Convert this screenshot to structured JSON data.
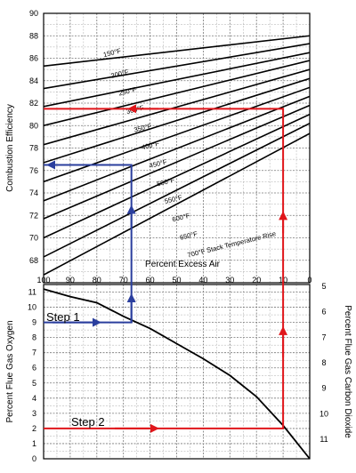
{
  "chart_data": [
    {
      "type": "line",
      "panel": "upper",
      "ylabel": "Combustion Efficiency",
      "xlabel": "Percent Excess Air",
      "series_label_suffix": "°F Stack Temperature Rise",
      "ylim": [
        66,
        90
      ],
      "xlim": [
        100,
        0
      ],
      "yticks": [
        68,
        70,
        72,
        74,
        76,
        78,
        80,
        82,
        84,
        86,
        88,
        90
      ],
      "xticks": [
        100,
        90,
        80,
        70,
        60,
        50,
        40,
        30,
        20,
        10,
        0
      ],
      "grid": true,
      "series": [
        {
          "name": "150°F",
          "x": [
            100,
            0
          ],
          "values": [
            85.3,
            88.0
          ]
        },
        {
          "name": "200°F",
          "x": [
            100,
            0
          ],
          "values": [
            83.3,
            87.3
          ]
        },
        {
          "name": "250°F",
          "x": [
            100,
            0
          ],
          "values": [
            81.7,
            86.5
          ]
        },
        {
          "name": "300°F",
          "x": [
            100,
            0
          ],
          "values": [
            80.0,
            85.8
          ]
        },
        {
          "name": "350°F",
          "x": [
            100,
            0
          ],
          "values": [
            78.3,
            85.0
          ]
        },
        {
          "name": "400°F",
          "x": [
            100,
            0
          ],
          "values": [
            76.7,
            84.2
          ]
        },
        {
          "name": "450°F",
          "x": [
            100,
            0
          ],
          "values": [
            75.0,
            83.4
          ]
        },
        {
          "name": "500°F",
          "x": [
            100,
            0
          ],
          "values": [
            73.3,
            82.6
          ]
        },
        {
          "name": "550°F",
          "x": [
            100,
            0
          ],
          "values": [
            71.7,
            81.8
          ]
        },
        {
          "name": "600°F",
          "x": [
            100,
            0
          ],
          "values": [
            70.0,
            81.0
          ]
        },
        {
          "name": "650°F",
          "x": [
            100,
            0
          ],
          "values": [
            68.3,
            80.2
          ]
        },
        {
          "name": "700°F",
          "x": [
            100,
            0
          ],
          "values": [
            66.7,
            79.3
          ]
        }
      ]
    },
    {
      "type": "line",
      "panel": "lower",
      "ylabel": "Percent Flue Gas Oxygen",
      "y2label": "Percent Flue Gas Carbon Dioxide",
      "ylim": [
        0,
        11.5
      ],
      "yticks": [
        0,
        1,
        2,
        3,
        4,
        5,
        6,
        7,
        8,
        9,
        10,
        11
      ],
      "y2ticks": [
        5,
        6,
        7,
        8,
        9,
        10,
        11
      ],
      "series": [
        {
          "name": "",
          "x": [
            100,
            90,
            80,
            70,
            60,
            50,
            40,
            30,
            20,
            10,
            0
          ],
          "values": [
            11.2,
            10.7,
            10.3,
            9.4,
            8.6,
            7.6,
            6.6,
            5.5,
            4.1,
            2.2,
            0.0
          ]
        }
      ]
    }
  ],
  "annotations": {
    "step1": "Step 1",
    "step2": "Step 2",
    "step1_color": "#2b3f9e",
    "step2_color": "#e0161b",
    "step1_path": {
      "oxygen": 9,
      "excess_air": 67,
      "efficiency": 76.5
    },
    "step2_path": {
      "oxygen": 2,
      "excess_air": 10,
      "efficiency": 81.5
    }
  }
}
